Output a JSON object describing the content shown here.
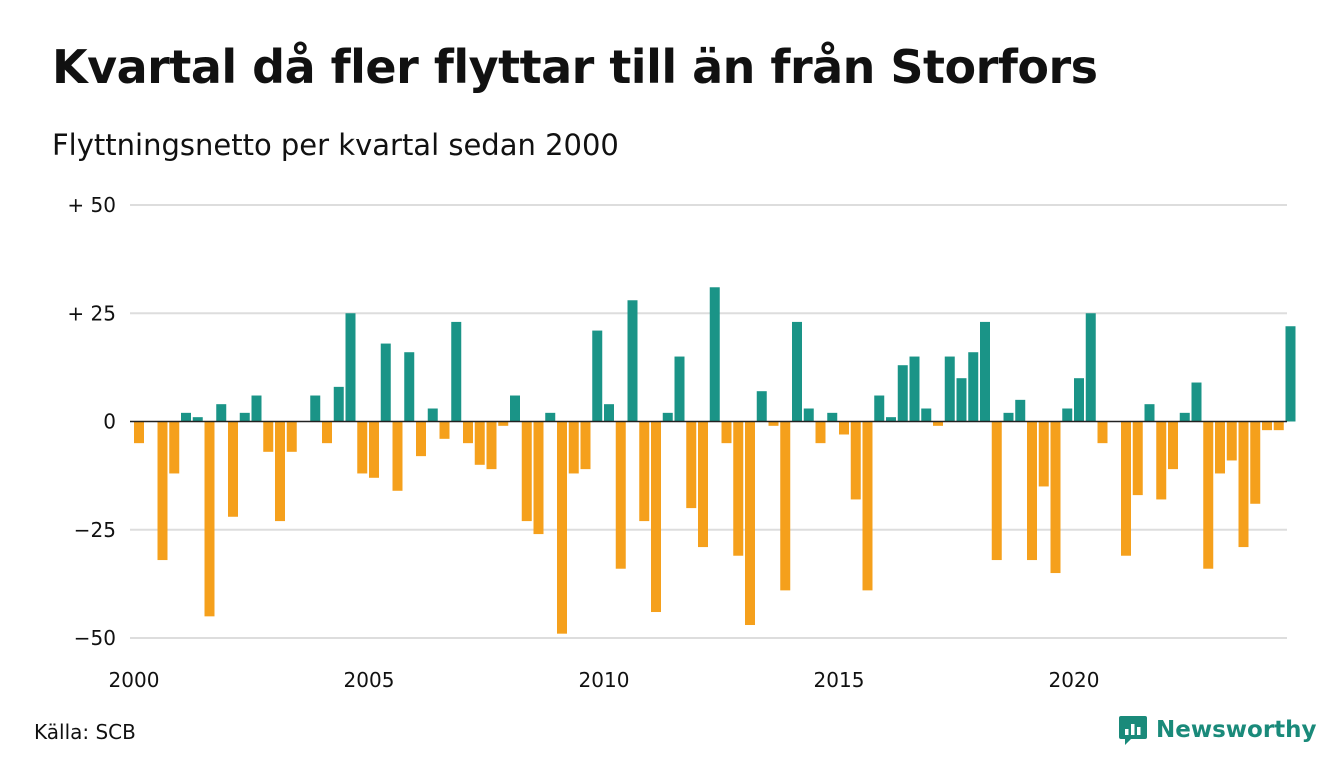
{
  "title": "Kvartal då fler flyttar till än från Storfors",
  "subtitle": "Flyttningsnetto per kvartal sedan 2000",
  "source": "Källa: SCB",
  "brand": {
    "name": "Newsworthy",
    "icon": "newsworthy-logo-icon"
  },
  "colors": {
    "positive": "#1a9487",
    "negative": "#f5a01c",
    "grid": "#dddddd",
    "zero": "#222222"
  },
  "chart_data": {
    "type": "bar",
    "x_start": "2000 Q1",
    "x_ticks": [
      {
        "value": 2000,
        "label": "2000"
      },
      {
        "value": 2005,
        "label": "2005"
      },
      {
        "value": 2010,
        "label": "2010"
      },
      {
        "value": 2015,
        "label": "2015"
      },
      {
        "value": 2020,
        "label": "2020"
      }
    ],
    "y_ticks": [
      {
        "value": 50,
        "label": "+ 50"
      },
      {
        "value": 25,
        "label": "+ 25"
      },
      {
        "value": 0,
        "label": "0"
      },
      {
        "value": -25,
        "label": "−25"
      },
      {
        "value": -50,
        "label": "−50"
      }
    ],
    "ylim": [
      -50,
      50
    ],
    "grid": true,
    "values": [
      -5,
      0,
      -32,
      -12,
      2,
      1,
      -45,
      4,
      -22,
      2,
      6,
      -7,
      -23,
      -7,
      0,
      6,
      -5,
      8,
      25,
      -12,
      -13,
      18,
      -16,
      16,
      -8,
      3,
      -4,
      23,
      -5,
      -10,
      -11,
      -1,
      6,
      -23,
      -26,
      2,
      -49,
      -12,
      -11,
      21,
      4,
      -34,
      28,
      -23,
      -44,
      2,
      15,
      -20,
      -29,
      31,
      -5,
      -31,
      -47,
      7,
      -1,
      -39,
      23,
      3,
      -5,
      2,
      -3,
      -18,
      -39,
      6,
      1,
      13,
      15,
      3,
      -1,
      15,
      10,
      16,
      23,
      -32,
      2,
      5,
      -32,
      -15,
      -35,
      3,
      10,
      25,
      -5,
      0,
      -31,
      -17,
      4,
      -18,
      -11,
      2,
      9,
      -34,
      -12,
      -9,
      -29,
      -19,
      -2,
      -2,
      22
    ]
  }
}
